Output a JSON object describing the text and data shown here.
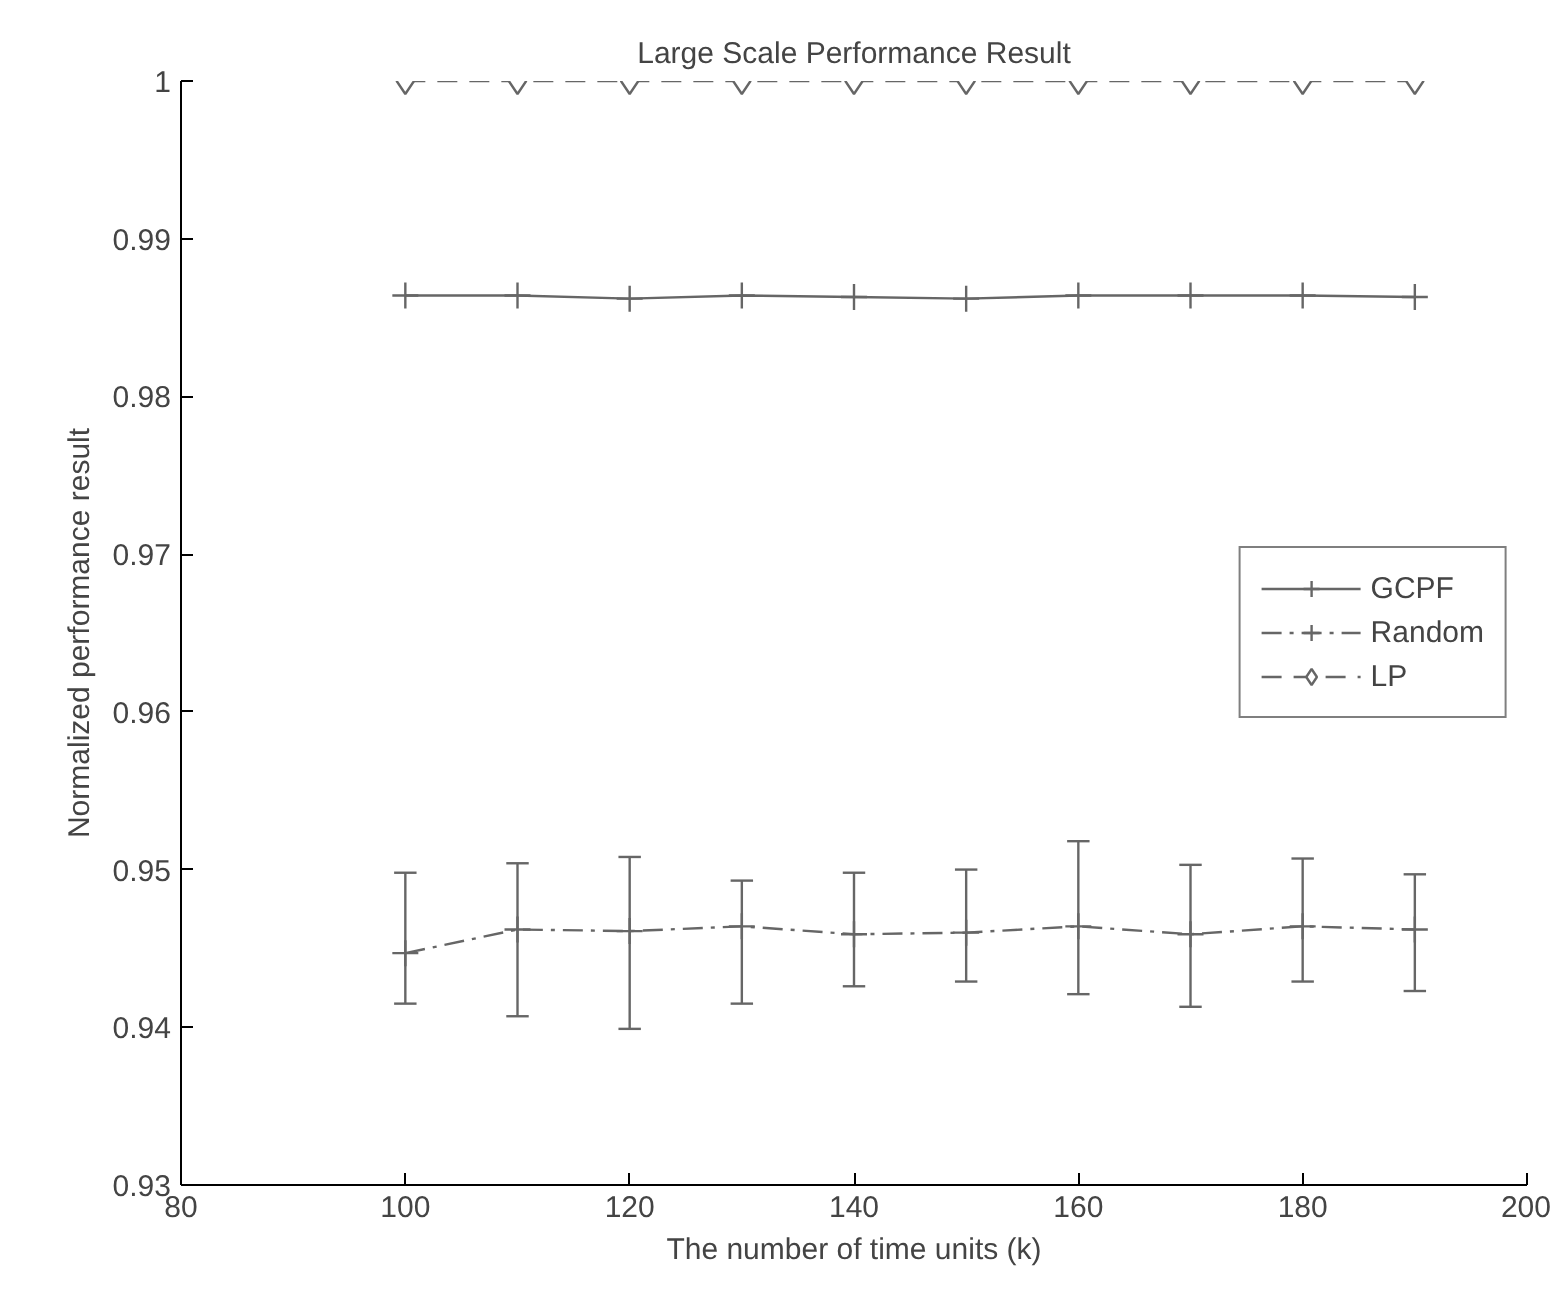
{
  "chart_data": {
    "type": "line",
    "title": "Large Scale Performance Result",
    "xlabel": "The number of time units (k)",
    "ylabel": "Normalized performance result",
    "x": [
      100,
      110,
      120,
      130,
      140,
      150,
      160,
      170,
      180,
      190
    ],
    "xlim": [
      80,
      200
    ],
    "xticks": [
      80,
      100,
      120,
      140,
      160,
      180,
      200
    ],
    "ylim": [
      0.93,
      1
    ],
    "yticks": [
      0.93,
      0.94,
      0.95,
      0.96,
      0.97,
      0.98,
      0.99,
      1
    ],
    "grid": false,
    "legend": "right",
    "series": [
      {
        "name": "GCPF",
        "color": "#666666",
        "marker": "cross",
        "line_style": "solid",
        "values": [
          0.9864,
          0.9864,
          0.9862,
          0.9864,
          0.9863,
          0.9862,
          0.9864,
          0.9864,
          0.9864,
          0.9863
        ]
      },
      {
        "name": "Random",
        "color": "#666666",
        "marker": "cross",
        "line_style": "dashdot",
        "values": [
          0.9447,
          0.9462,
          0.9461,
          0.9464,
          0.9459,
          0.946,
          0.9464,
          0.9459,
          0.9464,
          0.9462
        ],
        "errors": [
          [
            0.9415,
            0.9498
          ],
          [
            0.9407,
            0.9504
          ],
          [
            0.9399,
            0.9508
          ],
          [
            0.9415,
            0.9493
          ],
          [
            0.9426,
            0.9498
          ],
          [
            0.9429,
            0.95
          ],
          [
            0.9421,
            0.9518
          ],
          [
            0.9413,
            0.9503
          ],
          [
            0.9429,
            0.9507
          ],
          [
            0.9423,
            0.9497
          ]
        ]
      },
      {
        "name": "LP",
        "color": "#666666",
        "marker": "diamond",
        "line_style": "dashed",
        "values": [
          1,
          1,
          1,
          1,
          1,
          1,
          1,
          1,
          1,
          1
        ]
      }
    ]
  }
}
